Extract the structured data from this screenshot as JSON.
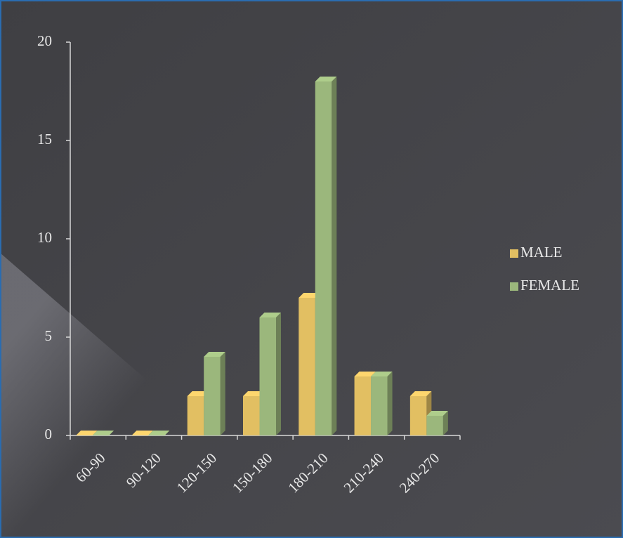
{
  "chart_data": {
    "type": "bar",
    "categories": [
      "60-90",
      "90-120",
      "120-150",
      "150-180",
      "180-210",
      "210-240",
      "240-270"
    ],
    "series": [
      {
        "name": "MALE",
        "color": "#e2bf62",
        "values": [
          0,
          0,
          2,
          2,
          7,
          3,
          2
        ]
      },
      {
        "name": "FEMALE",
        "color": "#9bb77c",
        "values": [
          0,
          0,
          4,
          6,
          18,
          3,
          1
        ]
      }
    ],
    "ylim": [
      0,
      20
    ],
    "yticks": [
      0,
      5,
      10,
      15,
      20
    ],
    "grid": false,
    "legend": "right"
  }
}
